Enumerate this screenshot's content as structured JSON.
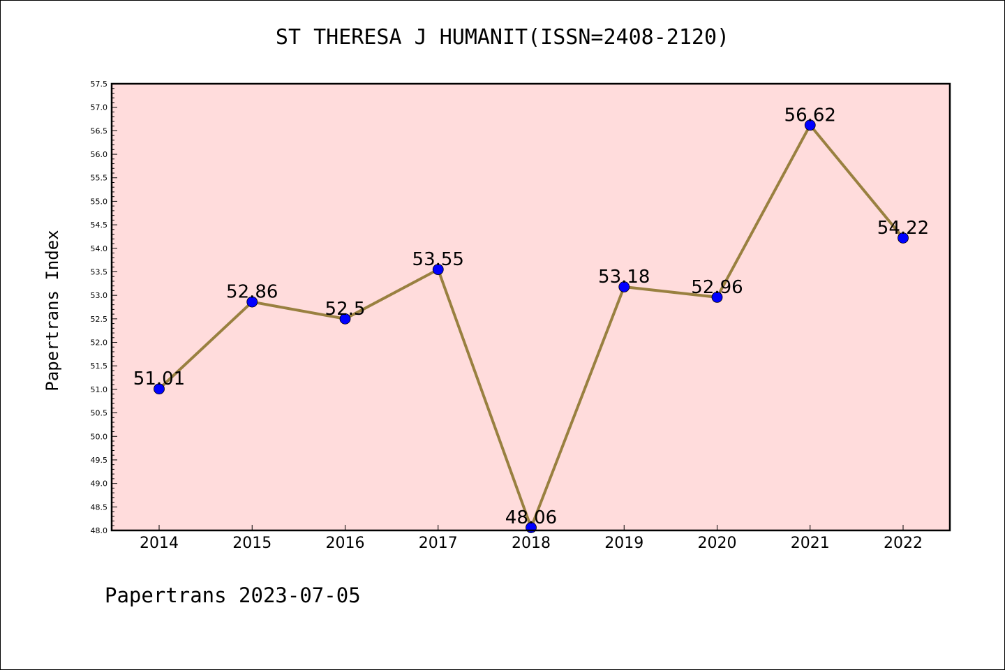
{
  "chart_data": {
    "type": "line",
    "title": "ST THERESA J HUMANIT(ISSN=2408-2120)",
    "ylabel": "Papertrans Index",
    "xlabel": "",
    "categories": [
      "2014",
      "2015",
      "2016",
      "2017",
      "2018",
      "2019",
      "2020",
      "2021",
      "2022"
    ],
    "values": [
      51.01,
      52.86,
      52.5,
      53.55,
      48.06,
      53.18,
      52.96,
      56.62,
      54.22
    ],
    "data_labels": [
      "51.01",
      "52.86",
      "52.5",
      "53.55",
      "48.06",
      "53.18",
      "52.96",
      "56.62",
      "54.22"
    ],
    "ylim": [
      48.0,
      57.5
    ],
    "yticks": [
      "48.0",
      "48.5",
      "49.0",
      "49.5",
      "50.0",
      "50.5",
      "51.0",
      "51.5",
      "52.0",
      "52.5",
      "53.0",
      "53.5",
      "54.0",
      "54.5",
      "55.0",
      "55.5",
      "56.0",
      "56.5",
      "57.0",
      "57.5"
    ],
    "grid": false,
    "colors": {
      "plot_background": "#ffdcdc",
      "line": "#998040",
      "marker": "#0000ff"
    }
  },
  "footer": "Papertrans 2023-07-05"
}
